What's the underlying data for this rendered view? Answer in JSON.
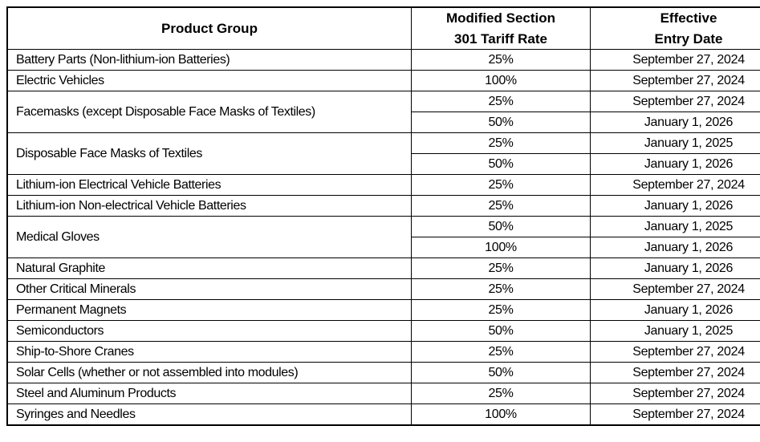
{
  "table": {
    "headers": {
      "product": "Product Group",
      "rate_line1": "Modified Section",
      "rate_line2": "301 Tariff Rate",
      "date_line1": "Effective",
      "date_line2": "Entry Date"
    },
    "rows": [
      {
        "product": "Battery Parts (Non-lithium-ion Batteries)",
        "entries": [
          {
            "rate": "25%",
            "date": "September 27, 2024"
          }
        ]
      },
      {
        "product": "Electric Vehicles",
        "entries": [
          {
            "rate": "100%",
            "date": "September 27, 2024"
          }
        ]
      },
      {
        "product": "Facemasks (except Disposable Face Masks of Textiles)",
        "entries": [
          {
            "rate": "25%",
            "date": "September 27, 2024"
          },
          {
            "rate": "50%",
            "date": "January 1, 2026"
          }
        ]
      },
      {
        "product": "Disposable Face Masks of Textiles",
        "entries": [
          {
            "rate": "25%",
            "date": "January 1, 2025"
          },
          {
            "rate": "50%",
            "date": "January 1, 2026"
          }
        ]
      },
      {
        "product": "Lithium-ion Electrical Vehicle Batteries",
        "entries": [
          {
            "rate": "25%",
            "date": "September 27, 2024"
          }
        ]
      },
      {
        "product": "Lithium-ion Non-electrical Vehicle Batteries",
        "entries": [
          {
            "rate": "25%",
            "date": "January 1, 2026"
          }
        ]
      },
      {
        "product": "Medical Gloves",
        "entries": [
          {
            "rate": "50%",
            "date": "January 1, 2025"
          },
          {
            "rate": "100%",
            "date": "January 1, 2026"
          }
        ]
      },
      {
        "product": "Natural Graphite",
        "entries": [
          {
            "rate": "25%",
            "date": "January 1, 2026"
          }
        ]
      },
      {
        "product": "Other Critical Minerals",
        "entries": [
          {
            "rate": "25%",
            "date": "September 27, 2024"
          }
        ]
      },
      {
        "product": "Permanent Magnets",
        "entries": [
          {
            "rate": "25%",
            "date": "January 1, 2026"
          }
        ]
      },
      {
        "product": "Semiconductors",
        "entries": [
          {
            "rate": "50%",
            "date": "January 1, 2025"
          }
        ]
      },
      {
        "product": "Ship-to-Shore Cranes",
        "entries": [
          {
            "rate": "25%",
            "date": "September 27, 2024"
          }
        ]
      },
      {
        "product": "Solar Cells (whether or not assembled into modules)",
        "entries": [
          {
            "rate": "50%",
            "date": "September 27, 2024"
          }
        ]
      },
      {
        "product": "Steel and Aluminum Products",
        "entries": [
          {
            "rate": "25%",
            "date": "September 27, 2024"
          }
        ]
      },
      {
        "product": "Syringes and Needles",
        "entries": [
          {
            "rate": "100%",
            "date": "September 27, 2024"
          }
        ]
      }
    ],
    "colors": {
      "border": "#000000",
      "text": "#000000",
      "background": "#ffffff"
    }
  }
}
